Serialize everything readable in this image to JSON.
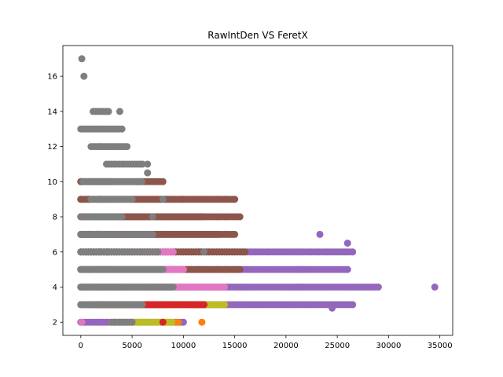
{
  "chart_data": {
    "type": "scatter",
    "title": "RawIntDen VS FeretX",
    "xlabel": "",
    "ylabel": "",
    "xlim": [
      -1750,
      36250
    ],
    "ylim": [
      1.25,
      17.75
    ],
    "xticks": [
      0,
      5000,
      10000,
      15000,
      20000,
      25000,
      30000,
      35000
    ],
    "yticks": [
      2,
      4,
      6,
      8,
      10,
      12,
      14,
      16
    ],
    "grid": false,
    "legend": "none",
    "colors": {
      "blue": "#1f77b4",
      "orange": "#ff7f0e",
      "green": "#2ca02c",
      "red": "#d62728",
      "purple": "#9467bd",
      "brown": "#8c564b",
      "pink": "#e377c2",
      "gray": "#7f7f7f",
      "olive": "#bcbd22",
      "cyan": "#17becf"
    },
    "series": [
      {
        "color": "purple",
        "ranges": [
          [
            0,
            29000,
            4
          ],
          [
            0,
            26500,
            3
          ],
          [
            0,
            26500,
            6
          ],
          [
            0,
            26000,
            5
          ],
          [
            0,
            13500,
            7
          ],
          [
            0,
            12000,
            8
          ],
          [
            0,
            10000,
            9
          ],
          [
            0,
            3000,
            10
          ],
          [
            0,
            10000,
            2
          ]
        ],
        "points": [
          [
            34500,
            4
          ],
          [
            23300,
            7
          ],
          [
            26000,
            6.5
          ],
          [
            24500,
            2.8
          ]
        ]
      },
      {
        "color": "brown",
        "ranges": [
          [
            0,
            16000,
            6
          ],
          [
            0,
            15000,
            7
          ],
          [
            0,
            15500,
            8
          ],
          [
            0,
            15000,
            9
          ],
          [
            0,
            8000,
            10
          ],
          [
            0,
            15500,
            5
          ]
        ],
        "points": []
      },
      {
        "color": "pink",
        "ranges": [
          [
            0,
            14000,
            4
          ],
          [
            0,
            10000,
            5
          ],
          [
            0,
            9000,
            6
          ],
          [
            0,
            5000,
            7
          ],
          [
            0,
            3000,
            8
          ]
        ],
        "points": [
          [
            100,
            2
          ]
        ]
      },
      {
        "color": "olive",
        "ranges": [
          [
            2500,
            14000,
            3
          ],
          [
            3000,
            9000,
            2
          ]
        ],
        "points": []
      },
      {
        "color": "orange",
        "ranges": [
          [
            2000,
            8000,
            3
          ]
        ],
        "points": [
          [
            11800,
            2
          ],
          [
            9500,
            2
          ],
          [
            100,
            8
          ],
          [
            200,
            7
          ]
        ]
      },
      {
        "color": "green",
        "ranges": [],
        "points": [
          [
            6000,
            3
          ],
          [
            11000,
            3
          ]
        ]
      },
      {
        "color": "red",
        "ranges": [
          [
            1500,
            12000,
            3
          ]
        ],
        "points": [
          [
            8000,
            2
          ],
          [
            1300,
            7
          ],
          [
            12000,
            3
          ],
          [
            2600,
            6
          ]
        ]
      },
      {
        "color": "blue",
        "ranges": [],
        "points": [
          [
            1100,
            3
          ],
          [
            2300,
            5
          ],
          [
            3500,
            6
          ]
        ]
      },
      {
        "color": "cyan",
        "ranges": [
          [
            800,
            4000,
            8
          ],
          [
            500,
            3000,
            6
          ],
          [
            500,
            2500,
            7
          ]
        ],
        "points": []
      },
      {
        "color": "gray",
        "ranges": [
          [
            0,
            9000,
            4
          ],
          [
            0,
            8000,
            5
          ],
          [
            0,
            7500,
            6
          ],
          [
            0,
            7000,
            7
          ],
          [
            0,
            4000,
            8
          ],
          [
            1000,
            5000,
            9
          ],
          [
            200,
            6000,
            10
          ],
          [
            2500,
            6000,
            11
          ],
          [
            1000,
            4500,
            12
          ],
          [
            0,
            4000,
            13
          ],
          [
            1200,
            2800,
            14
          ],
          [
            0,
            6000,
            3
          ],
          [
            3000,
            5000,
            2
          ]
        ],
        "points": [
          [
            100,
            17
          ],
          [
            300,
            16
          ],
          [
            3800,
            14
          ],
          [
            5500,
            10
          ],
          [
            6500,
            11
          ],
          [
            8000,
            9
          ],
          [
            7000,
            8
          ],
          [
            6500,
            10.5
          ],
          [
            12000,
            6
          ]
        ]
      }
    ]
  }
}
